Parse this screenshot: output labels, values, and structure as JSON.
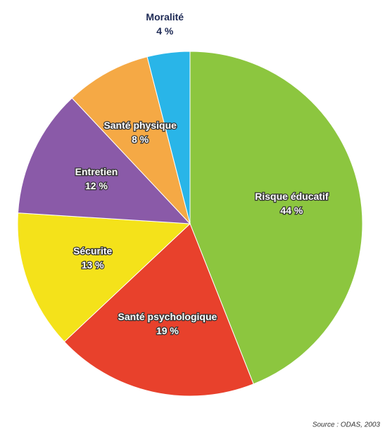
{
  "chart_data": {
    "type": "pie",
    "source": "Source : ODAS, 2003",
    "categories": [
      "Risque éducatif",
      "Santé psychologique",
      "Sécurite",
      "Entretien",
      "Santé physique",
      "Moralité"
    ],
    "values": [
      44,
      19,
      13,
      12,
      8,
      4
    ],
    "value_labels": [
      "44 %",
      "19 %",
      "13 %",
      "12 %",
      "8 %",
      "4 %"
    ],
    "colors": [
      "#8cc63f",
      "#e8412c",
      "#f4e21a",
      "#8a5aa8",
      "#f5a945",
      "#29b5e8"
    ]
  }
}
